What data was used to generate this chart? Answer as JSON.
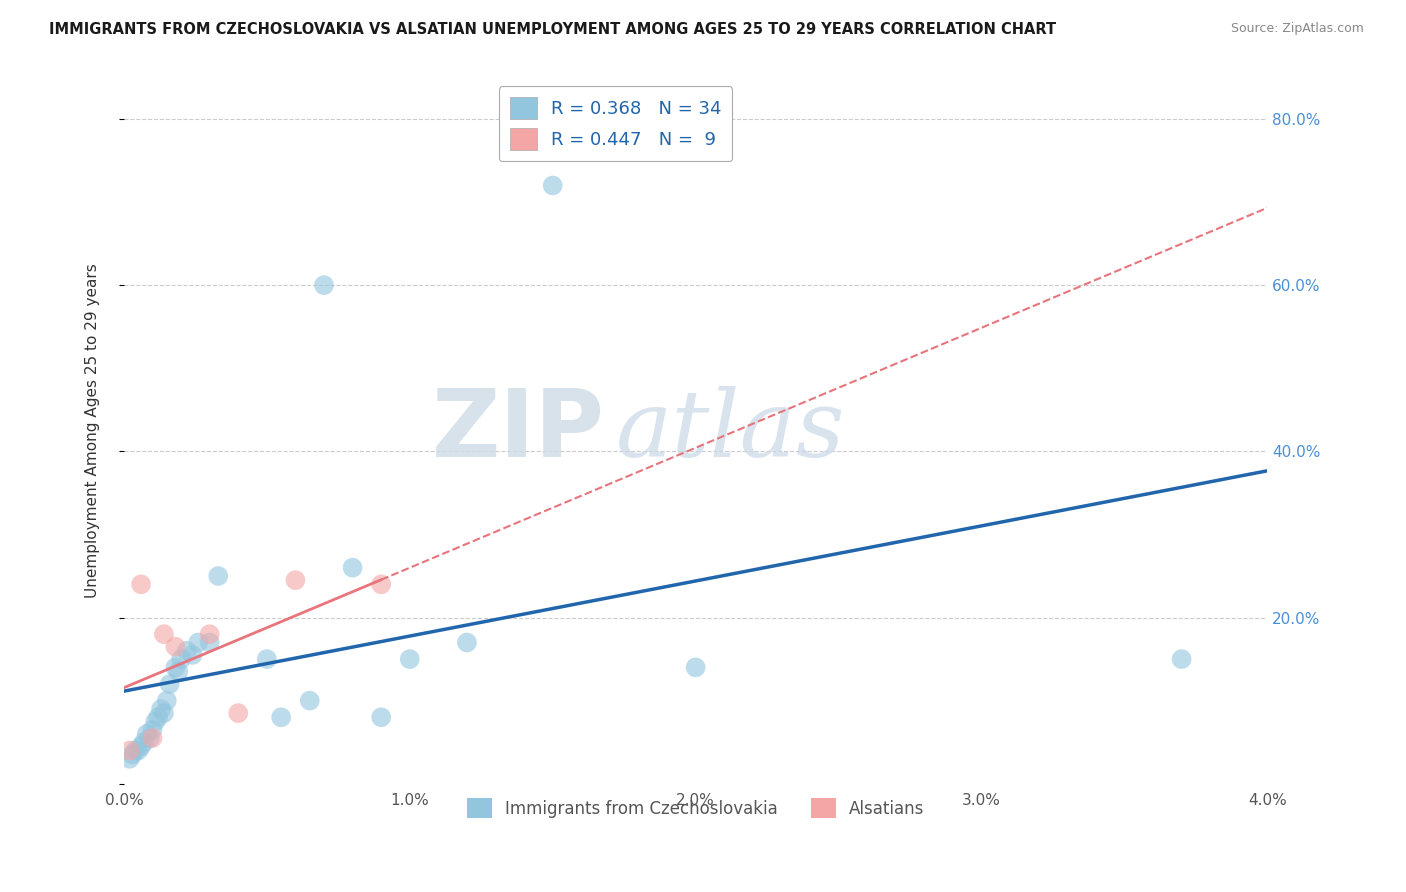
{
  "title": "IMMIGRANTS FROM CZECHOSLOVAKIA VS ALSATIAN UNEMPLOYMENT AMONG AGES 25 TO 29 YEARS CORRELATION CHART",
  "source": "Source: ZipAtlas.com",
  "ylabel": "Unemployment Among Ages 25 to 29 years",
  "xlim": [
    0.0,
    0.04
  ],
  "ylim": [
    0.0,
    0.85
  ],
  "yticks": [
    0.0,
    0.2,
    0.4,
    0.6,
    0.8
  ],
  "ytick_labels_right": [
    "",
    "20.0%",
    "40.0%",
    "60.0%",
    "80.0%"
  ],
  "xticks": [
    0.0,
    0.01,
    0.02,
    0.03,
    0.04
  ],
  "xtick_labels": [
    "0.0%",
    "1.0%",
    "2.0%",
    "3.0%",
    "4.0%"
  ],
  "blue_R": 0.368,
  "blue_N": 34,
  "pink_R": 0.447,
  "pink_N": 9,
  "blue_color": "#92c5de",
  "pink_color": "#f4a6a6",
  "blue_line_color": "#2166ac",
  "pink_line_color": "#e8747c",
  "watermark_zip": "ZIP",
  "watermark_atlas": "atlas",
  "legend_label_blue": "Immigrants from Czechoslovakia",
  "legend_label_pink": "Alsatians",
  "blue_x": [
    0.0002,
    0.0003,
    0.0004,
    0.0005,
    0.0006,
    0.0007,
    0.0008,
    0.0009,
    0.001,
    0.0011,
    0.0012,
    0.0013,
    0.0014,
    0.0015,
    0.0016,
    0.0018,
    0.0019,
    0.002,
    0.0022,
    0.0024,
    0.0026,
    0.003,
    0.0033,
    0.005,
    0.0055,
    0.0065,
    0.007,
    0.008,
    0.009,
    0.01,
    0.012,
    0.015,
    0.02,
    0.037
  ],
  "blue_y": [
    0.03,
    0.035,
    0.04,
    0.04,
    0.045,
    0.05,
    0.06,
    0.055,
    0.065,
    0.075,
    0.08,
    0.09,
    0.085,
    0.1,
    0.12,
    0.14,
    0.135,
    0.15,
    0.16,
    0.155,
    0.17,
    0.17,
    0.25,
    0.15,
    0.08,
    0.1,
    0.6,
    0.26,
    0.08,
    0.15,
    0.17,
    0.72,
    0.14,
    0.15
  ],
  "pink_x": [
    0.0002,
    0.0006,
    0.001,
    0.0014,
    0.0018,
    0.003,
    0.004,
    0.006,
    0.009
  ],
  "pink_y": [
    0.04,
    0.24,
    0.055,
    0.18,
    0.165,
    0.18,
    0.085,
    0.245,
    0.24
  ]
}
